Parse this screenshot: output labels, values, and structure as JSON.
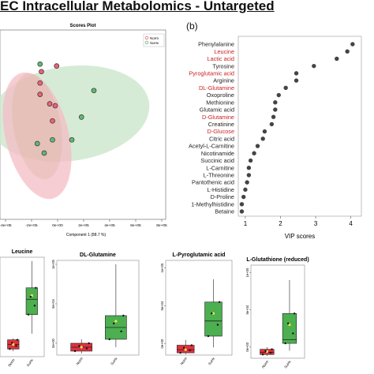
{
  "title": "EC Intracellular Metabolomics - Untargeted",
  "panel_b_label": "(b)",
  "chart_data": [
    {
      "type": "scatter",
      "title": "Scores Plot",
      "xlabel": "Component 1 (88.7 %)",
      "x_ticks": [
        "-4e+05",
        "-2e+05",
        "0e+00",
        "2e+05",
        "4e+05",
        "6e+05",
        "8e+05"
      ],
      "xlim": [
        -400000,
        800000
      ],
      "legend": {
        "placement": "top-right",
        "entries": [
          {
            "name": "Norm",
            "color": "#e8637a"
          },
          {
            "name": "SuHx",
            "color": "#5fb872"
          }
        ]
      },
      "ellipses": [
        {
          "group": "SuHx",
          "color": "#cfe8cf"
        },
        {
          "group": "Norm",
          "color": "#f4bcc6"
        }
      ],
      "points_norm": [
        [
          -110000,
          72
        ],
        [
          -100000,
          78
        ],
        [
          -40000,
          61
        ],
        [
          -20000,
          52
        ],
        [
          0,
          60
        ],
        [
          10000,
          81
        ],
        [
          -110000,
          66
        ]
      ],
      "points_suhx": [
        [
          -130000,
          40
        ],
        [
          -20000,
          42
        ],
        [
          -110000,
          82
        ],
        [
          120000,
          42
        ],
        [
          190000,
          54
        ],
        [
          280000,
          68
        ],
        [
          -80000,
          35
        ]
      ]
    },
    {
      "type": "scatter",
      "title": "",
      "xlabel": "VIP scores",
      "x_ticks": [
        "1",
        "2",
        "3",
        "4"
      ],
      "xlim": [
        0.8,
        4.3
      ],
      "metabolites": [
        {
          "name": "Phenylalanine",
          "vip": 4.05,
          "color": "#222222"
        },
        {
          "name": "Leucine",
          "vip": 3.9,
          "color": "#cc2222"
        },
        {
          "name": "Lactic acid",
          "vip": 3.6,
          "color": "#cc2222"
        },
        {
          "name": "Tyrosine",
          "vip": 2.95,
          "color": "#222222"
        },
        {
          "name": "Pyroglutamic acid",
          "vip": 2.45,
          "color": "#cc2222"
        },
        {
          "name": "Arginine",
          "vip": 2.45,
          "color": "#222222"
        },
        {
          "name": "DL-Glutamine",
          "vip": 2.15,
          "color": "#cc2222"
        },
        {
          "name": "Oxoproline",
          "vip": 1.95,
          "color": "#222222"
        },
        {
          "name": "Methionine",
          "vip": 1.85,
          "color": "#222222"
        },
        {
          "name": "Glutamic acid",
          "vip": 1.85,
          "color": "#222222"
        },
        {
          "name": "D-Glutamine",
          "vip": 1.8,
          "color": "#cc2222"
        },
        {
          "name": "Creatinine",
          "vip": 1.75,
          "color": "#222222"
        },
        {
          "name": "D-Glucose",
          "vip": 1.55,
          "color": "#cc2222"
        },
        {
          "name": "Citric acid",
          "vip": 1.5,
          "color": "#222222"
        },
        {
          "name": "Acetyl-L-Carnitine",
          "vip": 1.35,
          "color": "#222222"
        },
        {
          "name": "Nicotinamide",
          "vip": 1.25,
          "color": "#222222"
        },
        {
          "name": "Succinic acid",
          "vip": 1.15,
          "color": "#222222"
        },
        {
          "name": "L-Carnitine",
          "vip": 1.1,
          "color": "#222222"
        },
        {
          "name": "L-Threonine",
          "vip": 1.1,
          "color": "#222222"
        },
        {
          "name": "Pantothenic acid",
          "vip": 1.05,
          "color": "#222222"
        },
        {
          "name": "L-Histidine",
          "vip": 1.0,
          "color": "#222222"
        },
        {
          "name": "D-Proline",
          "vip": 0.95,
          "color": "#222222"
        },
        {
          "name": "1-Methylhistidine",
          "vip": 0.9,
          "color": "#222222"
        },
        {
          "name": "Betaine",
          "vip": 0.9,
          "color": "#222222"
        }
      ]
    },
    {
      "type": "box",
      "title": "Leucine",
      "categories": [
        "Norm",
        "SuHx"
      ],
      "ylim": [
        -10000,
        120000
      ],
      "boxes": [
        {
          "group": "Norm",
          "q1": 0,
          "median": 6000,
          "q3": 12000,
          "lo": -3000,
          "hi": 14000,
          "mean": 6000,
          "color": "#e0303f"
        },
        {
          "group": "SuHx",
          "q1": 45000,
          "median": 65000,
          "q3": 80000,
          "lo": 20000,
          "hi": 115000,
          "mean": 70000,
          "color": "#4caf50"
        }
      ]
    },
    {
      "type": "box",
      "title": "DL-Glutamine",
      "categories": [
        "Norm",
        "SuHx"
      ],
      "y_ticks": [
        "0e+00",
        "5e+04",
        "1e+05"
      ],
      "ylim": [
        -15000,
        105000
      ],
      "boxes": [
        {
          "group": "Norm",
          "q1": -10000,
          "median": -5000,
          "q3": 0,
          "lo": -13000,
          "hi": 5000,
          "mean": -5000,
          "color": "#e0303f"
        },
        {
          "group": "SuHx",
          "q1": 5000,
          "median": 20000,
          "q3": 35000,
          "lo": -5000,
          "hi": 100000,
          "mean": 28000,
          "color": "#4caf50"
        }
      ]
    },
    {
      "type": "box",
      "title": "L-Pyroglutamic acid",
      "categories": [
        "Norm",
        "SuHx"
      ],
      "y_ticks": [
        "0e+00",
        "5e+04",
        "1e+05"
      ],
      "ylim": [
        -15000,
        110000
      ],
      "boxes": [
        {
          "group": "Norm",
          "q1": -12000,
          "median": -8000,
          "q3": -2000,
          "lo": -14000,
          "hi": 5000,
          "mean": -8000,
          "color": "#e0303f"
        },
        {
          "group": "SuHx",
          "q1": 10000,
          "median": 30000,
          "q3": 55000,
          "lo": -5000,
          "hi": 85000,
          "mean": 40000,
          "color": "#4caf50"
        }
      ]
    },
    {
      "type": "box",
      "title": "L-Glutathione (reduced)",
      "categories": [
        "Norm",
        "SuHx"
      ],
      "y_ticks": [
        "0e+00",
        "5e+04",
        "1e+05"
      ],
      "ylim": [
        -15000,
        110000
      ],
      "boxes": [
        {
          "group": "Norm",
          "q1": -10000,
          "median": -7000,
          "q3": -3000,
          "lo": -12000,
          "hi": 0,
          "mean": -6000,
          "color": "#e0303f"
        },
        {
          "group": "SuHx",
          "q1": 5000,
          "median": 10000,
          "q3": 45000,
          "lo": -5000,
          "hi": 90000,
          "mean": 30000,
          "color": "#4caf50"
        }
      ]
    }
  ]
}
